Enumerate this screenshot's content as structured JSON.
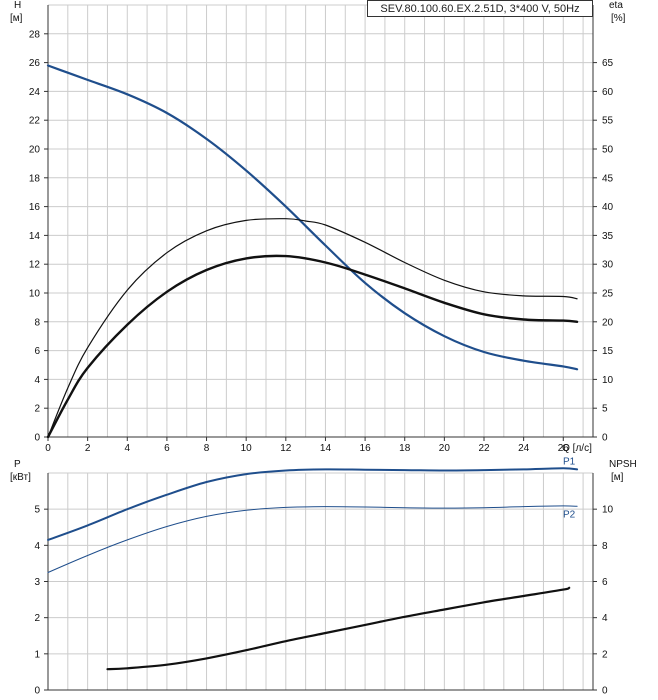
{
  "title": "SEV.80.100.60.EX.2.51D, 3*400 V, 50Hz",
  "colors": {
    "blue": "#1f4e8c",
    "black": "#111111",
    "grid": "#cccccc"
  },
  "chart_data": [
    {
      "type": "line",
      "id": "top",
      "xlabel": "Q [л/с]",
      "ylabel_left": [
        "H",
        "[м]"
      ],
      "ylabel_right": [
        "eta",
        "[%]"
      ],
      "xlim": [
        0,
        27.5
      ],
      "ylim_left": [
        0,
        30
      ],
      "ylim_right": [
        0,
        75
      ],
      "xticks": [
        0,
        2,
        4,
        6,
        8,
        10,
        12,
        14,
        16,
        18,
        20,
        22,
        24,
        26
      ],
      "yticks_left": [
        0,
        2,
        4,
        6,
        8,
        10,
        12,
        14,
        16,
        18,
        20,
        22,
        24,
        26,
        28
      ],
      "yticks_right": [
        0,
        5,
        10,
        15,
        20,
        25,
        30,
        35,
        40,
        45,
        50,
        55,
        60,
        65
      ],
      "grid": true,
      "series": [
        {
          "axis": "left",
          "color": "#1f4e8c",
          "width": 2.2,
          "x": [
            0,
            1,
            2,
            4,
            6,
            8,
            10,
            12,
            14,
            16,
            18,
            20,
            22,
            24,
            26,
            26.7
          ],
          "y": [
            25.8,
            25.3,
            24.8,
            23.8,
            22.5,
            20.7,
            18.5,
            16.0,
            13.3,
            10.7,
            8.6,
            7.0,
            5.9,
            5.3,
            4.9,
            4.7
          ]
        },
        {
          "axis": "right",
          "color": "#111111",
          "width": 1.2,
          "x": [
            0,
            1,
            2,
            4,
            6,
            8,
            10,
            12,
            13,
            14,
            16,
            18,
            20,
            22,
            24,
            26,
            26.7
          ],
          "y": [
            0,
            8.5,
            15.5,
            25.5,
            32.0,
            35.8,
            37.6,
            37.9,
            37.5,
            36.8,
            33.8,
            30.3,
            27.2,
            25.2,
            24.5,
            24.4,
            24.0
          ]
        },
        {
          "axis": "right",
          "color": "#111111",
          "width": 2.4,
          "x": [
            0,
            1,
            2,
            4,
            6,
            8,
            10,
            12,
            14,
            16,
            18,
            20,
            22,
            24,
            26,
            26.7
          ],
          "y": [
            0,
            6.5,
            12.0,
            19.5,
            25.2,
            29.0,
            31.0,
            31.4,
            30.3,
            28.2,
            25.8,
            23.3,
            21.3,
            20.4,
            20.2,
            20.0
          ]
        }
      ]
    },
    {
      "type": "line",
      "id": "bottom",
      "ylabel_left": [
        "P",
        "[кВт]"
      ],
      "ylabel_right": [
        "NPSH",
        "[м]"
      ],
      "xlim": [
        0,
        27.5
      ],
      "ylim_left": [
        0,
        6
      ],
      "ylim_right": [
        0,
        12
      ],
      "yticks_left": [
        0,
        1,
        2,
        3,
        4,
        5
      ],
      "yticks_right": [
        0,
        2,
        4,
        6,
        8,
        10
      ],
      "grid": true,
      "series": [
        {
          "name": "P1",
          "axis": "left",
          "color": "#1f4e8c",
          "width": 2.0,
          "x": [
            0,
            2,
            4,
            6,
            8,
            10,
            12,
            14,
            16,
            18,
            20,
            22,
            24,
            26,
            26.7
          ],
          "y": [
            4.15,
            4.55,
            5.0,
            5.4,
            5.75,
            5.97,
            6.07,
            6.1,
            6.09,
            6.08,
            6.07,
            6.08,
            6.1,
            6.13,
            6.1
          ]
        },
        {
          "name": "P2",
          "axis": "left",
          "color": "#1f4e8c",
          "width": 1.0,
          "x": [
            0,
            2,
            4,
            6,
            8,
            10,
            12,
            14,
            16,
            18,
            20,
            22,
            24,
            26,
            26.7
          ],
          "y": [
            3.25,
            3.72,
            4.15,
            4.52,
            4.8,
            4.97,
            5.05,
            5.07,
            5.06,
            5.04,
            5.03,
            5.04,
            5.07,
            5.09,
            5.08
          ]
        },
        {
          "axis": "right",
          "color": "#111111",
          "width": 2.2,
          "x": [
            3,
            4,
            6,
            8,
            10,
            12,
            14,
            16,
            18,
            20,
            22,
            24,
            26,
            26.3
          ],
          "y": [
            1.15,
            1.2,
            1.4,
            1.75,
            2.2,
            2.7,
            3.15,
            3.6,
            4.05,
            4.45,
            4.85,
            5.2,
            5.55,
            5.65
          ]
        }
      ]
    }
  ]
}
